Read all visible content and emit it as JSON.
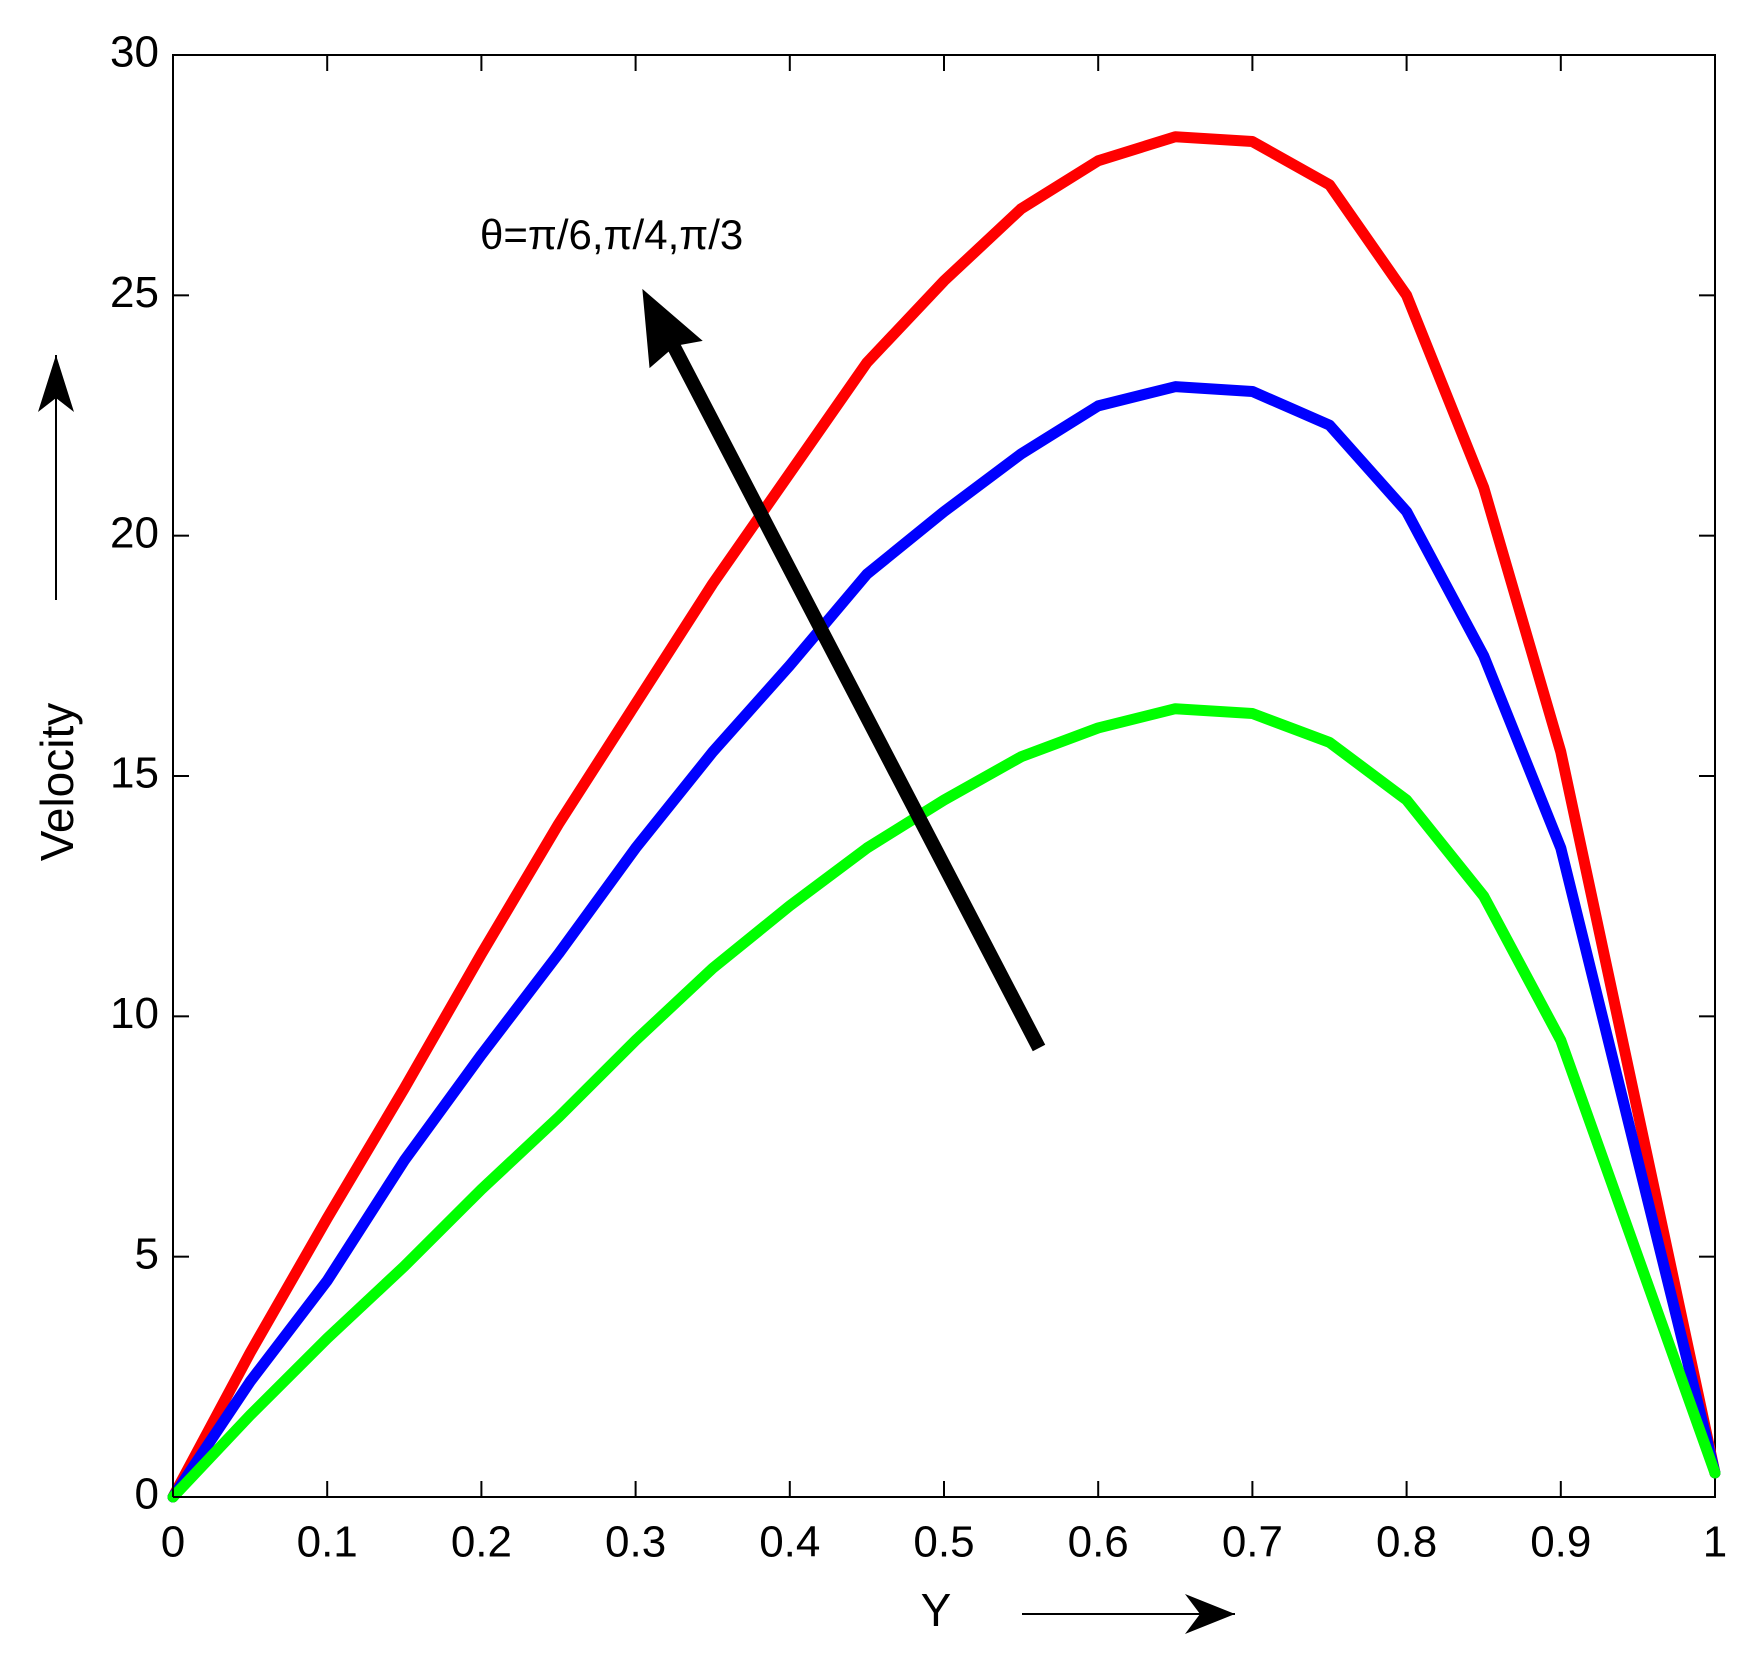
{
  "chart_data": {
    "type": "line",
    "annotation": "θ=π/6,π/4,π/3",
    "xlabel": "Y",
    "ylabel": "Velocity",
    "x": [
      0,
      0.05,
      0.1,
      0.15,
      0.2,
      0.25,
      0.3,
      0.35,
      0.4,
      0.45,
      0.5,
      0.55,
      0.6,
      0.65,
      0.7,
      0.75,
      0.8,
      0.85,
      0.9,
      0.95,
      1
    ],
    "series": [
      {
        "color": "#ff0000",
        "values": [
          0,
          3,
          5.8,
          8.5,
          11.3,
          14,
          16.5,
          19,
          21.3,
          23.6,
          25.3,
          26.8,
          27.8,
          28.3,
          28.2,
          27.3,
          25,
          21,
          15.5,
          8,
          0.5
        ]
      },
      {
        "color": "#0000ff",
        "values": [
          0,
          2.4,
          4.5,
          7,
          9.2,
          11.3,
          13.5,
          15.5,
          17.3,
          19.2,
          20.5,
          21.7,
          22.7,
          23.1,
          23,
          22.3,
          20.5,
          17.5,
          13.5,
          7,
          0.5
        ]
      },
      {
        "color": "#00ff00",
        "values": [
          0,
          1.7,
          3.3,
          4.8,
          6.4,
          7.9,
          9.5,
          11,
          12.3,
          13.5,
          14.5,
          15.4,
          16,
          16.4,
          16.3,
          15.7,
          14.5,
          12.5,
          9.5,
          5,
          0.5
        ]
      }
    ],
    "xlim": [
      0,
      1
    ],
    "xticks": [
      0,
      0.1,
      0.2,
      0.3,
      0.4,
      0.5,
      0.6,
      0.7,
      0.8,
      0.9,
      1
    ],
    "ylim": [
      0,
      30
    ],
    "yticks": [
      0,
      5,
      10,
      15,
      20,
      25,
      30
    ]
  }
}
